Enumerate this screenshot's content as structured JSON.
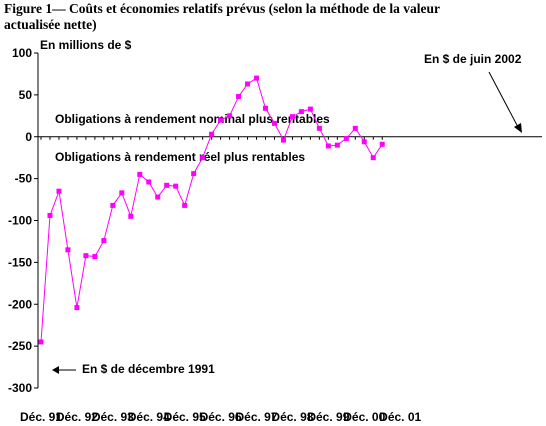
{
  "figure": {
    "title_line1": "Figure 1— Coûts et économies relatifs prévus (selon la méthode de la valeur",
    "title_line2": "actualisée nette)"
  },
  "chart_data": {
    "type": "line",
    "ylabel": "En millions de $",
    "ylim": [
      -300,
      100
    ],
    "yticks": [
      100,
      50,
      0,
      -50,
      -100,
      -150,
      -200,
      -250,
      -300
    ],
    "ytick_labels": [
      "100",
      "50",
      "0",
      "-50",
      "-100",
      "-150",
      "-200",
      "-250",
      "-300"
    ],
    "xtick_labels": [
      "Déc. 91",
      "Déc. 92",
      "Déc. 93",
      "Déc. 94",
      "Déc. 95",
      "Déc. 96",
      "Déc. 97",
      "Déc. 98",
      "Déc. 99",
      "Déc. 00",
      "Déc. 01"
    ],
    "x_start": "Déc. 91",
    "points_per_year": 4,
    "grid": false,
    "marker_color": "#ff00ff",
    "line_color": "#ff00ff",
    "values": [
      -245,
      -94,
      -65,
      -135,
      -204,
      -142,
      -143,
      -124,
      -82,
      -67,
      -95,
      -45,
      -54,
      -72,
      -58,
      -59,
      -82,
      -44,
      -25,
      3,
      20,
      25,
      48,
      63,
      70,
      34,
      16,
      -4,
      24,
      30,
      33,
      10,
      -11,
      -10,
      -2,
      10,
      -6,
      -25,
      -9
    ],
    "annotations": {
      "nominal": "Obligations à rendement nominal plus rentables",
      "real": "Obligations à rendement réel plus rentables",
      "june2002": "En $ de juin 2002",
      "dec1991": "En $ de décembre 1991"
    }
  }
}
